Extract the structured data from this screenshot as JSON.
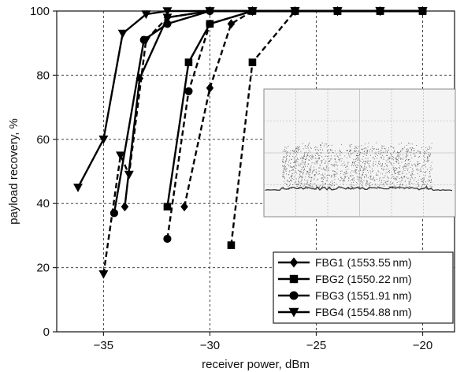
{
  "chart_data": {
    "type": "line",
    "title": "",
    "xlabel": "receiver power, dBm",
    "ylabel": "payload recovery, %",
    "xlim": [
      -37.2,
      -18.5
    ],
    "ylim": [
      0,
      100
    ],
    "x_ticks": [
      -35,
      -30,
      -25,
      -20
    ],
    "x_tick_labels": [
      "−35",
      "−30",
      "−25",
      "−20"
    ],
    "y_ticks": [
      0,
      20,
      40,
      60,
      80,
      100
    ],
    "y_tick_labels": [
      "0",
      "20",
      "40",
      "60",
      "80",
      "100"
    ],
    "grid": true,
    "legend_position": "bottom-right",
    "series": [
      {
        "name": "FBG1 (1553.55 nm)",
        "marker": "diamond",
        "line": "solid",
        "points": [
          [
            -34.0,
            39
          ],
          [
            -33.3,
            79
          ],
          [
            -32.0,
            98
          ],
          [
            -30.0,
            100
          ],
          [
            -28.0,
            100
          ],
          [
            -26.0,
            100
          ],
          [
            -24.0,
            100
          ],
          [
            -22.0,
            100
          ],
          [
            -20.0,
            100
          ]
        ]
      },
      {
        "name": "FBG1 (1553.55 nm)",
        "marker": "diamond",
        "line": "dashed",
        "legend": false,
        "points": [
          [
            -31.2,
            39
          ],
          [
            -30.0,
            76
          ],
          [
            -29.0,
            96
          ],
          [
            -28.0,
            100
          ],
          [
            -26.0,
            100
          ],
          [
            -24.0,
            100
          ],
          [
            -22.0,
            100
          ],
          [
            -20.0,
            100
          ]
        ]
      },
      {
        "name": "FBG2 (1550.22 nm)",
        "marker": "square",
        "line": "solid",
        "points": [
          [
            -32.0,
            39
          ],
          [
            -31.0,
            84
          ],
          [
            -30.0,
            96
          ],
          [
            -28.0,
            100
          ],
          [
            -26.0,
            100
          ],
          [
            -24.0,
            100
          ],
          [
            -22.0,
            100
          ],
          [
            -20.0,
            100
          ]
        ]
      },
      {
        "name": "FBG2 (1550.22 nm)",
        "marker": "square",
        "line": "dashed",
        "legend": false,
        "points": [
          [
            -29.0,
            27
          ],
          [
            -28.0,
            84
          ],
          [
            -26.0,
            100
          ],
          [
            -24.0,
            100
          ],
          [
            -22.0,
            100
          ],
          [
            -20.0,
            100
          ]
        ]
      },
      {
        "name": "FBG3 (1551.91 nm)",
        "marker": "circle",
        "line": "solid",
        "points": [
          [
            -34.5,
            37
          ],
          [
            -33.1,
            91
          ],
          [
            -32.0,
            96
          ],
          [
            -30.0,
            100
          ],
          [
            -28.0,
            100
          ],
          [
            -26.0,
            100
          ],
          [
            -24.0,
            100
          ],
          [
            -22.0,
            100
          ],
          [
            -20.0,
            100
          ]
        ]
      },
      {
        "name": "FBG3 (1551.91 nm)",
        "marker": "circle",
        "line": "dashed",
        "legend": false,
        "points": [
          [
            -32.0,
            29
          ],
          [
            -31.0,
            75
          ],
          [
            -30.0,
            96
          ],
          [
            -28.0,
            100
          ],
          [
            -26.0,
            100
          ],
          [
            -24.0,
            100
          ],
          [
            -22.0,
            100
          ],
          [
            -20.0,
            100
          ]
        ]
      },
      {
        "name": "FBG4 (1554.88 nm)",
        "marker": "triangle-down",
        "line": "solid",
        "points": [
          [
            -36.2,
            45
          ],
          [
            -35.0,
            60
          ],
          [
            -34.1,
            93
          ],
          [
            -33.0,
            99
          ],
          [
            -32.0,
            100
          ],
          [
            -30.0,
            100
          ],
          [
            -28.0,
            100
          ],
          [
            -26.0,
            100
          ],
          [
            -24.0,
            100
          ],
          [
            -22.0,
            100
          ],
          [
            -20.0,
            100
          ]
        ]
      },
      {
        "name": "FBG4 (1554.88 nm)",
        "marker": "triangle-down",
        "line": "dashed",
        "legend": false,
        "points": [
          [
            -35.0,
            18
          ],
          [
            -34.2,
            55
          ],
          [
            -33.8,
            49
          ],
          [
            -33.0,
            91
          ],
          [
            -32.0,
            98
          ],
          [
            -30.0,
            100
          ],
          [
            -28.0,
            100
          ],
          [
            -26.0,
            100
          ],
          [
            -24.0,
            100
          ],
          [
            -22.0,
            100
          ],
          [
            -20.0,
            100
          ]
        ]
      }
    ],
    "inset": {
      "type": "waveform-screenshot"
    }
  }
}
